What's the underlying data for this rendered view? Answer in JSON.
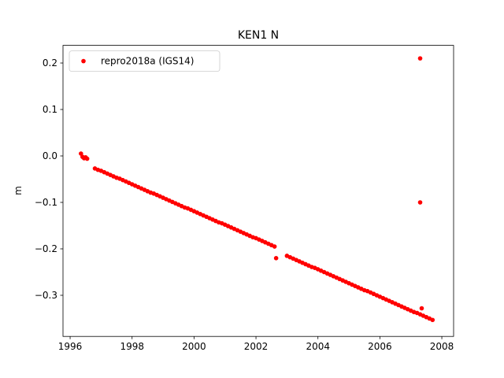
{
  "chart_data": {
    "type": "scatter",
    "title": "KEN1 N",
    "ylabel": "m",
    "x": [
      1996.35,
      1996.4,
      1996.45,
      1996.5,
      1996.55,
      1996.8,
      1996.9,
      1997.0,
      1997.1,
      1997.2,
      1997.3,
      1997.4,
      1997.5,
      1997.6,
      1997.7,
      1997.8,
      1997.9,
      1998.0,
      1998.1,
      1998.2,
      1998.3,
      1998.4,
      1998.5,
      1998.6,
      1998.7,
      1998.8,
      1998.9,
      1999.0,
      1999.1,
      1999.2,
      1999.3,
      1999.4,
      1999.5,
      1999.6,
      1999.7,
      1999.8,
      1999.9,
      2000.0,
      2000.1,
      2000.2,
      2000.3,
      2000.4,
      2000.5,
      2000.6,
      2000.7,
      2000.8,
      2000.9,
      2001.0,
      2001.1,
      2001.2,
      2001.3,
      2001.4,
      2001.5,
      2001.6,
      2001.7,
      2001.8,
      2001.9,
      2002.0,
      2002.1,
      2002.2,
      2002.3,
      2002.4,
      2002.5,
      2002.6,
      2002.65,
      2003.0,
      2003.1,
      2003.2,
      2003.3,
      2003.4,
      2003.5,
      2003.6,
      2003.7,
      2003.8,
      2003.9,
      2004.0,
      2004.1,
      2004.2,
      2004.3,
      2004.4,
      2004.5,
      2004.6,
      2004.7,
      2004.8,
      2004.9,
      2005.0,
      2005.1,
      2005.2,
      2005.3,
      2005.4,
      2005.5,
      2005.6,
      2005.7,
      2005.8,
      2005.9,
      2006.0,
      2006.1,
      2006.2,
      2006.3,
      2006.4,
      2006.5,
      2006.6,
      2006.7,
      2006.8,
      2006.9,
      2007.0,
      2007.1,
      2007.2,
      2007.3,
      2007.4,
      2007.5,
      2007.6,
      2007.7,
      2007.3,
      2007.3,
      2007.35
    ],
    "series": [
      {
        "name": "repro2018a (IGS14)",
        "color": "#ff0000",
        "values": [
          0.005,
          -0.002,
          -0.005,
          -0.003,
          -0.006,
          -0.027,
          -0.03,
          -0.032,
          -0.035,
          -0.038,
          -0.041,
          -0.044,
          -0.047,
          -0.049,
          -0.052,
          -0.055,
          -0.058,
          -0.061,
          -0.064,
          -0.067,
          -0.07,
          -0.073,
          -0.076,
          -0.079,
          -0.081,
          -0.084,
          -0.087,
          -0.09,
          -0.093,
          -0.096,
          -0.099,
          -0.102,
          -0.105,
          -0.108,
          -0.111,
          -0.113,
          -0.116,
          -0.119,
          -0.122,
          -0.125,
          -0.128,
          -0.131,
          -0.134,
          -0.137,
          -0.14,
          -0.143,
          -0.145,
          -0.148,
          -0.151,
          -0.154,
          -0.157,
          -0.16,
          -0.163,
          -0.166,
          -0.169,
          -0.172,
          -0.175,
          -0.177,
          -0.18,
          -0.183,
          -0.186,
          -0.189,
          -0.192,
          -0.195,
          -0.22,
          -0.215,
          -0.218,
          -0.221,
          -0.224,
          -0.227,
          -0.23,
          -0.233,
          -0.236,
          -0.239,
          -0.241,
          -0.244,
          -0.247,
          -0.25,
          -0.253,
          -0.256,
          -0.259,
          -0.262,
          -0.265,
          -0.268,
          -0.271,
          -0.274,
          -0.277,
          -0.28,
          -0.283,
          -0.286,
          -0.289,
          -0.291,
          -0.294,
          -0.297,
          -0.3,
          -0.303,
          -0.306,
          -0.309,
          -0.312,
          -0.315,
          -0.318,
          -0.321,
          -0.324,
          -0.327,
          -0.33,
          -0.333,
          -0.336,
          -0.338,
          -0.341,
          -0.344,
          -0.347,
          -0.35,
          -0.353,
          0.21,
          -0.1,
          -0.328
        ]
      }
    ],
    "xlim": [
      1995.77,
      2008.38
    ],
    "ylim": [
      -0.3885,
      0.238
    ],
    "xticks": [
      1996,
      1998,
      2000,
      2002,
      2004,
      2006,
      2008
    ],
    "yticks": [
      0.2,
      0.1,
      {
        "value": 0,
        "label": "0.0"
      },
      {
        "value": -0.1,
        "label": "−0.1"
      },
      {
        "value": -0.2,
        "label": "−0.2"
      },
      {
        "value": -0.3,
        "label": "−0.3"
      }
    ],
    "legend": "upper left"
  }
}
